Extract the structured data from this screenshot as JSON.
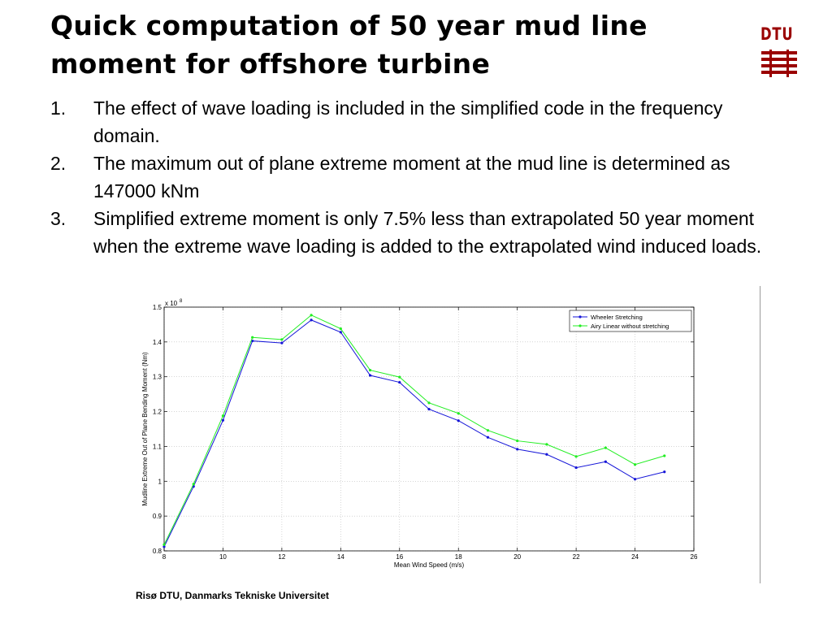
{
  "slide": {
    "title_line1": "Quick computation of 50 year mud line",
    "title_line2": "moment for offshore turbine",
    "logo_text": "DTU",
    "points": [
      {
        "num": "1.",
        "text": "The effect of wave loading is included in the simplified code in the frequency domain."
      },
      {
        "num": "2.",
        "text": "The maximum out of plane extreme moment at the mud line is determined as 147000 kNm"
      },
      {
        "num": "3.",
        "text": "Simplified extreme moment is only 7.5% less than extrapolated 50 year moment when the extreme wave loading is added to the extrapolated wind induced loads."
      }
    ],
    "footer": "Risø DTU, Danmarks Tekniske Universitet"
  },
  "colors": {
    "logo": "#9a0000"
  },
  "chart_data": {
    "type": "line",
    "xlabel": "Mean Wind Speed (m/s)",
    "ylabel": "Mudline Extreme Out of Plane Bending Moment (Nm)",
    "exponent_label_base": "x 10",
    "exponent_label_power": "8",
    "xlim": [
      8,
      26
    ],
    "ylim": [
      0.8,
      1.5
    ],
    "xticks": [
      "8",
      "10",
      "12",
      "14",
      "16",
      "18",
      "20",
      "22",
      "24",
      "26"
    ],
    "yticks": [
      "0.8",
      "0.9",
      "1",
      "1.1",
      "1.2",
      "1.3",
      "1.4",
      "1.5"
    ],
    "grid": true,
    "legend_position": "top-right",
    "x": [
      8,
      9,
      10,
      11,
      12,
      13,
      14,
      15,
      16,
      17,
      18,
      19,
      20,
      21,
      22,
      23,
      24,
      25
    ],
    "series": [
      {
        "name": "Wheeler Stretching",
        "color": "#1515d8",
        "values": [
          0.812,
          0.985,
          1.175,
          1.403,
          1.397,
          1.463,
          1.428,
          1.304,
          1.284,
          1.207,
          1.174,
          1.126,
          1.092,
          1.077,
          1.039,
          1.056,
          1.006,
          1.027
        ]
      },
      {
        "name": "Airy Linear without stretching",
        "color": "#22ee22",
        "values": [
          0.818,
          0.992,
          1.188,
          1.413,
          1.407,
          1.477,
          1.438,
          1.319,
          1.299,
          1.225,
          1.195,
          1.146,
          1.116,
          1.106,
          1.071,
          1.096,
          1.048,
          1.073
        ]
      }
    ]
  }
}
